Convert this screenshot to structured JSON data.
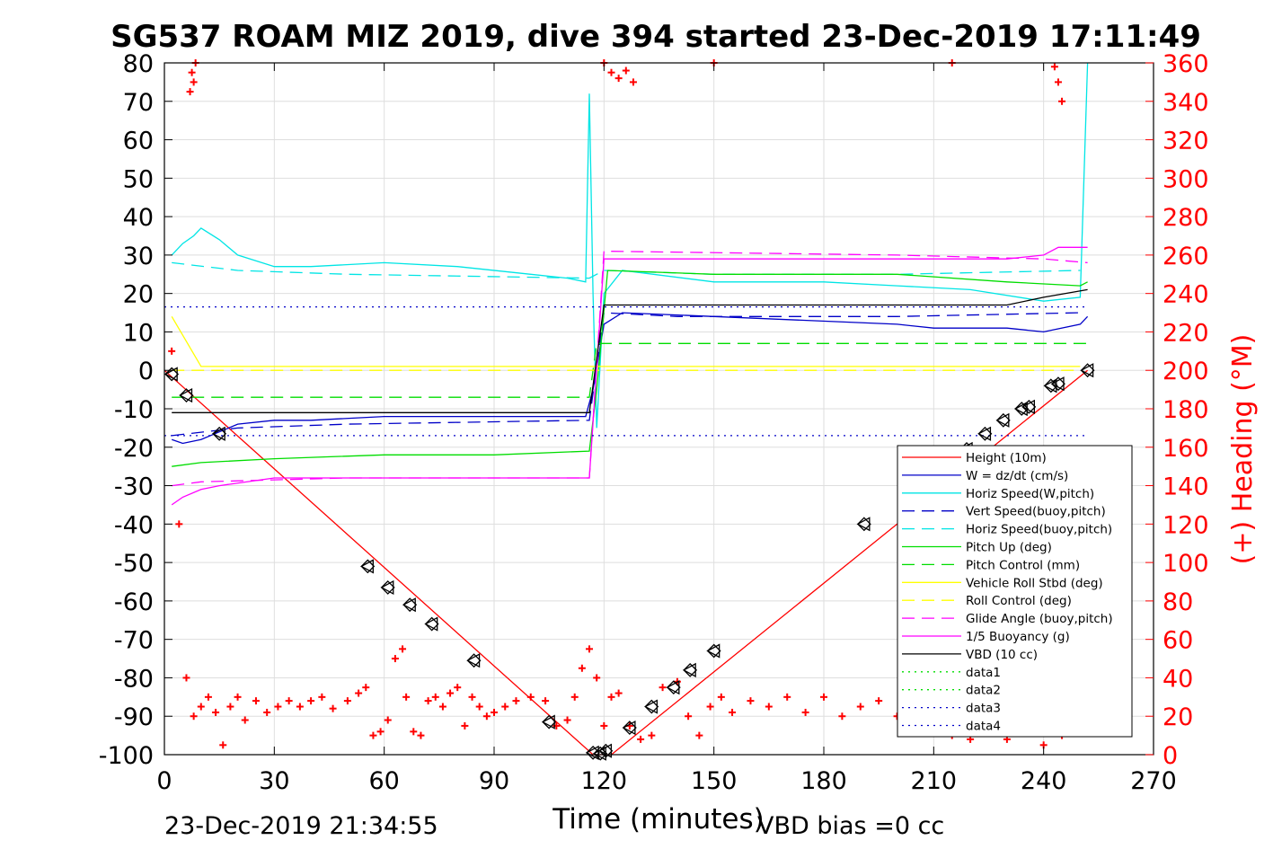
{
  "chart_data": {
    "type": "line",
    "title": "SG537 ROAM MIZ 2019, dive 394 started 23-Dec-2019 17:11:49",
    "xlabel": "Time (minutes)",
    "ylabel_right": "(+) Heading (°M)",
    "footer_left": "23-Dec-2019 21:34:55",
    "footer_right": "VBD bias =0 cc",
    "xlim": [
      0,
      270
    ],
    "ylim": [
      -100,
      80
    ],
    "ylim_right": [
      0,
      360
    ],
    "x_ticks": [
      "0",
      "30",
      "60",
      "90",
      "120",
      "150",
      "180",
      "210",
      "240",
      "270"
    ],
    "y_ticks": [
      "80",
      "70",
      "60",
      "50",
      "40",
      "30",
      "20",
      "10",
      "0",
      "-10",
      "-20",
      "-30",
      "-40",
      "-50",
      "-60",
      "-70",
      "-80",
      "-90",
      "-100"
    ],
    "y_ticks_right": [
      "360",
      "340",
      "320",
      "300",
      "280",
      "260",
      "240",
      "220",
      "200",
      "180",
      "160",
      "140",
      "120",
      "100",
      "80",
      "60",
      "40",
      "20",
      "0"
    ],
    "grid": true,
    "legend_position": "lower-right",
    "series": [
      {
        "name": "Height (10m)",
        "color": "#ff0000",
        "style": "solid",
        "x": [
          0,
          117,
          122,
          252
        ],
        "y": [
          0,
          -100,
          -100,
          0
        ]
      },
      {
        "name": "W = dz/dt (cm/s)",
        "color": "#0000c8",
        "style": "solid",
        "x": [
          2,
          5,
          10,
          15,
          20,
          30,
          40,
          60,
          80,
          100,
          115,
          117,
          120,
          125,
          150,
          200,
          210,
          230,
          240,
          250,
          252
        ],
        "y": [
          -18,
          -19,
          -18,
          -16,
          -14,
          -13,
          -13,
          -12,
          -12,
          -12,
          -12,
          -5,
          12,
          15,
          14,
          12,
          11,
          11,
          10,
          12,
          14
        ]
      },
      {
        "name": "Horiz Speed(W,pitch)",
        "color": "#00e5e5",
        "style": "solid",
        "x": [
          2,
          5,
          8,
          10,
          15,
          20,
          30,
          40,
          60,
          80,
          100,
          110,
          115,
          116,
          117,
          118,
          120,
          125,
          150,
          180,
          200,
          220,
          240,
          250,
          252
        ],
        "y": [
          30,
          33,
          35,
          37,
          34,
          30,
          27,
          27,
          28,
          27,
          25,
          24,
          23,
          72,
          20,
          -15,
          20,
          26,
          23,
          23,
          22,
          21,
          18,
          19,
          80
        ]
      },
      {
        "name": "Vert Speed(buoy,pitch)",
        "color": "#0000c8",
        "style": "dash",
        "x": [
          2,
          20,
          50,
          116,
          120,
          140,
          200,
          250
        ],
        "y": [
          -17,
          -15,
          -14,
          -13,
          15,
          14,
          14,
          15
        ]
      },
      {
        "name": "Horiz Speed(buoy,pitch)",
        "color": "#00e5e5",
        "style": "dash",
        "x": [
          2,
          20,
          50,
          116,
          120,
          150,
          200,
          250
        ],
        "y": [
          28,
          26,
          25,
          24,
          26,
          25,
          25,
          26
        ]
      },
      {
        "name": "Pitch Up (deg)",
        "color": "#00dd00",
        "style": "solid",
        "x": [
          2,
          10,
          30,
          60,
          90,
          116,
          118,
          121,
          150,
          200,
          230,
          250,
          252
        ],
        "y": [
          -25,
          -24,
          -23,
          -22,
          -22,
          -21,
          -5,
          26,
          25,
          25,
          23,
          22,
          23
        ]
      },
      {
        "name": "Pitch Control (mm)",
        "color": "#00dd00",
        "style": "dash",
        "x": [
          2,
          116,
          118,
          252
        ],
        "y": [
          -7,
          -7,
          7,
          7
        ]
      },
      {
        "name": "Vehicle Roll Stbd (deg)",
        "color": "#ffff00",
        "style": "solid",
        "x": [
          2,
          10,
          60,
          118,
          150,
          250
        ],
        "y": [
          14,
          1,
          1,
          1,
          1,
          1
        ]
      },
      {
        "name": "Roll Control (deg)",
        "color": "#ffff00",
        "style": "dash",
        "x": [
          2,
          250
        ],
        "y": [
          0,
          0
        ]
      },
      {
        "name": "Glide Angle (buoy,pitch)",
        "color": "#ff00ff",
        "style": "dash",
        "x": [
          2,
          10,
          50,
          116,
          120,
          200,
          240,
          252
        ],
        "y": [
          -30,
          -29,
          -28,
          -28,
          31,
          30,
          29,
          28
        ]
      },
      {
        "name": "1/5 Buoyancy (g)",
        "color": "#ff00ff",
        "style": "solid",
        "x": [
          2,
          5,
          10,
          15,
          30,
          116,
          120,
          230,
          240,
          244,
          252
        ],
        "y": [
          -35,
          -33,
          -31,
          -30,
          -28,
          -28,
          29,
          29,
          30,
          32,
          32
        ]
      },
      {
        "name": "VBD (10 cc)",
        "color": "#000000",
        "style": "solid",
        "x": [
          2,
          116,
          120,
          230,
          240,
          252
        ],
        "y": [
          -11,
          -11,
          17,
          17,
          19,
          21
        ]
      },
      {
        "name": "data1",
        "color": "#00dd00",
        "style": "dot",
        "x": [],
        "y": []
      },
      {
        "name": "data2",
        "color": "#00dd00",
        "style": "dot",
        "x": [],
        "y": []
      },
      {
        "name": "data3",
        "color": "#0000c8",
        "style": "dot",
        "x": [
          0,
          252
        ],
        "y": [
          -17,
          -17
        ]
      },
      {
        "name": "data4",
        "color": "#0000c8",
        "style": "dot",
        "x": [
          0,
          252
        ],
        "y": [
          16.5,
          16.5
        ]
      }
    ],
    "heading": {
      "axis": "right",
      "color": "#ff0000",
      "marker": "+",
      "x": [
        2,
        4,
        6,
        8,
        10,
        12,
        14,
        16,
        18,
        20,
        22,
        25,
        28,
        31,
        34,
        37,
        40,
        43,
        46,
        50,
        53,
        55,
        57,
        59,
        61,
        63,
        65,
        66,
        68,
        70,
        72,
        74,
        76,
        78,
        80,
        82,
        84,
        86,
        88,
        90,
        93,
        96,
        100,
        104,
        107,
        110,
        112,
        114,
        116,
        118,
        120,
        122,
        124,
        127,
        130,
        133,
        136,
        140,
        143,
        146,
        149,
        152,
        155,
        160,
        165,
        170,
        175,
        180,
        185,
        190,
        195,
        200,
        205,
        210,
        215,
        220,
        225,
        230,
        235,
        240,
        245,
        250
      ],
      "y": [
        210,
        120,
        40,
        20,
        25,
        30,
        22,
        5,
        25,
        30,
        18,
        28,
        22,
        25,
        28,
        25,
        28,
        30,
        24,
        28,
        32,
        35,
        10,
        12,
        18,
        50,
        55,
        30,
        12,
        10,
        28,
        30,
        25,
        32,
        35,
        15,
        30,
        25,
        20,
        22,
        25,
        28,
        30,
        28,
        15,
        18,
        30,
        45,
        55,
        40,
        15,
        30,
        32,
        15,
        8,
        10,
        35,
        38,
        20,
        10,
        25,
        30,
        22,
        28,
        25,
        30,
        22,
        30,
        20,
        25,
        28,
        20,
        28,
        30,
        10,
        8,
        20,
        8,
        15,
        5,
        10,
        20
      ]
    },
    "heading_wrap": {
      "x": [
        7,
        7.5,
        8,
        8.5,
        120,
        122,
        124,
        126,
        128,
        150,
        215,
        243,
        244,
        245
      ],
      "y": [
        345,
        355,
        350,
        360,
        360,
        355,
        352,
        356,
        350,
        360,
        360,
        358,
        350,
        340
      ]
    },
    "waypoint_markers": {
      "x": [
        2,
        6,
        15,
        55.5,
        61,
        67,
        73,
        84.5,
        105,
        117,
        119,
        120.5,
        127,
        133,
        139,
        143.5,
        150,
        191,
        219,
        224,
        229,
        234,
        236,
        242,
        244,
        252
      ],
      "y": [
        -1,
        -6.5,
        -16.5,
        -51,
        -56.5,
        -61,
        -66,
        -75.5,
        -91.5,
        -99.5,
        -99.7,
        -99,
        -93,
        -87.5,
        -82.5,
        -78,
        -73,
        -40,
        -20.5,
        -16.5,
        -13,
        -10,
        -9.5,
        -4,
        -3.5,
        0
      ]
    }
  },
  "legend": {
    "entries": [
      "Height (10m)",
      "W = dz/dt (cm/s)",
      "Horiz Speed(W,pitch)",
      "Vert Speed(buoy,pitch)",
      "Horiz Speed(buoy,pitch)",
      "Pitch Up (deg)",
      "Pitch Control (mm)",
      "Vehicle Roll Stbd (deg)",
      "Roll Control (deg)",
      "Glide Angle (buoy,pitch)",
      "1/5 Buoyancy (g)",
      "VBD (10 cc)",
      "data1",
      "data2",
      "data3",
      "data4"
    ]
  }
}
